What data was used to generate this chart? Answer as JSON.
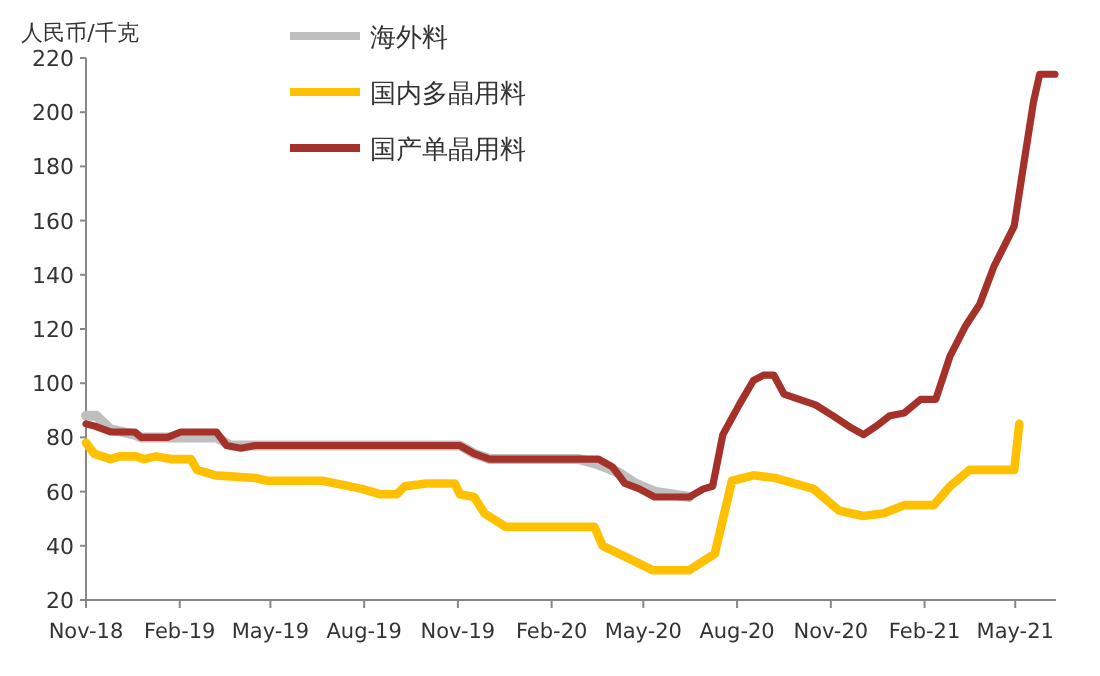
{
  "chart_data": {
    "type": "line",
    "ylabel": "人民币/千克",
    "legend": "top left",
    "xlim": [
      "2018-11-01",
      "2021-06-10"
    ],
    "ylim": [
      20,
      220
    ],
    "yticks": [
      20,
      40,
      60,
      80,
      100,
      120,
      140,
      160,
      180,
      200,
      220
    ],
    "xticks": [
      {
        "value": "2018-11-01",
        "label": "Nov-18"
      },
      {
        "value": "2019-02-01",
        "label": "Feb-19"
      },
      {
        "value": "2019-05-01",
        "label": "May-19"
      },
      {
        "value": "2019-08-01",
        "label": "Aug-19"
      },
      {
        "value": "2019-11-01",
        "label": "Nov-19"
      },
      {
        "value": "2020-02-01",
        "label": "Feb-20"
      },
      {
        "value": "2020-05-01",
        "label": "May-20"
      },
      {
        "value": "2020-08-01",
        "label": "Aug-20"
      },
      {
        "value": "2020-11-01",
        "label": "Nov-20"
      },
      {
        "value": "2021-02-01",
        "label": "Feb-21"
      },
      {
        "value": "2021-05-01",
        "label": "May-21"
      }
    ],
    "series": [
      {
        "name": "海外料",
        "color": "#bfbfbf",
        "x": [
          "2018-11-01",
          "2018-11-11",
          "2018-11-25",
          "2018-12-19",
          "2018-12-25",
          "2019-03-09",
          "2019-03-23",
          "2019-11-03",
          "2019-11-17",
          "2019-12-02",
          "2020-02-28",
          "2020-03-18",
          "2020-04-07",
          "2020-04-23",
          "2020-05-12",
          "2020-06-15"
        ],
        "values": [
          88,
          88,
          83,
          81,
          80,
          80,
          77,
          77,
          74,
          72,
          72,
          70,
          67,
          63,
          60,
          58
        ]
      },
      {
        "name": "国内多晶用料",
        "color": "#ffc000",
        "x": [
          "2018-11-01",
          "2018-11-09",
          "2018-11-25",
          "2018-12-04",
          "2018-12-20",
          "2018-12-28",
          "2019-01-09",
          "2019-01-23",
          "2019-02-12",
          "2019-02-18",
          "2019-03-08",
          "2019-04-16",
          "2019-04-28",
          "2019-06-21",
          "2019-07-30",
          "2019-08-17",
          "2019-09-02",
          "2019-09-10",
          "2019-10-01",
          "2019-10-29",
          "2019-11-03",
          "2019-11-17",
          "2019-11-27",
          "2019-12-18",
          "2020-03-14",
          "2020-03-22",
          "2020-04-13",
          "2020-05-10",
          "2020-06-15",
          "2020-07-10",
          "2020-07-27",
          "2020-08-17",
          "2020-09-08",
          "2020-10-15",
          "2020-11-09",
          "2020-12-03",
          "2020-12-23",
          "2021-01-12",
          "2021-02-10",
          "2021-02-26",
          "2021-03-17",
          "2021-04-30",
          "2021-05-05"
        ],
        "values": [
          78,
          74,
          72,
          73,
          73,
          72,
          73,
          72,
          72,
          68,
          66,
          65,
          64,
          64,
          61,
          59,
          59,
          62,
          63,
          63,
          59,
          58,
          52,
          47,
          47,
          40,
          36,
          31,
          31,
          37,
          64,
          66,
          65,
          61,
          53,
          51,
          52,
          55,
          55,
          62,
          68,
          68,
          85
        ]
      },
      {
        "name": "国产单晶用料",
        "color": "#a5312b",
        "x": [
          "2018-11-01",
          "2018-11-11",
          "2018-11-25",
          "2018-12-19",
          "2018-12-25",
          "2019-01-20",
          "2019-02-02",
          "2019-03-09",
          "2019-03-19",
          "2019-04-02",
          "2019-04-16",
          "2019-11-03",
          "2019-11-17",
          "2019-12-02",
          "2020-02-02",
          "2020-03-18",
          "2020-04-01",
          "2020-04-13",
          "2020-04-27",
          "2020-05-12",
          "2020-06-15",
          "2020-06-29",
          "2020-07-08",
          "2020-07-18",
          "2020-08-03",
          "2020-08-17",
          "2020-08-27",
          "2020-09-06",
          "2020-09-16",
          "2020-10-01",
          "2020-10-17",
          "2020-11-03",
          "2020-11-19",
          "2020-12-03",
          "2020-12-15",
          "2020-12-29",
          "2021-01-12",
          "2021-01-28",
          "2021-02-12",
          "2021-02-26",
          "2021-03-13",
          "2021-03-27",
          "2021-04-10",
          "2021-04-30",
          "2021-05-09",
          "2021-05-19",
          "2021-05-25",
          "2021-06-09"
        ],
        "values": [
          85,
          84,
          82,
          82,
          80,
          80,
          82,
          82,
          77,
          76,
          77,
          77,
          74,
          72,
          72,
          72,
          69,
          63,
          61,
          58,
          58,
          61,
          62,
          81,
          92,
          101,
          103,
          103,
          96,
          94,
          92,
          88,
          84,
          81,
          84,
          88,
          89,
          94,
          94,
          110,
          121,
          129,
          143,
          158,
          180,
          204,
          214,
          214
        ]
      }
    ]
  }
}
